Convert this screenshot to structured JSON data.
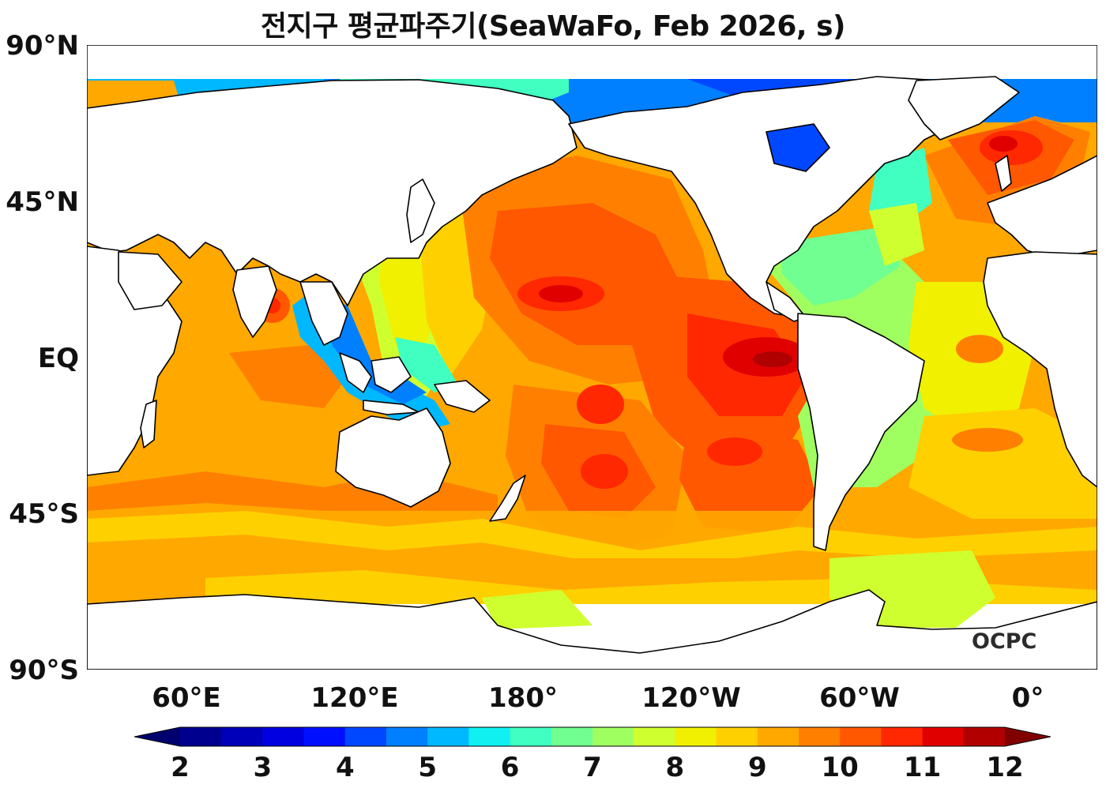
{
  "title": "전지구 평균파주기(SeaWaFo, Feb 2026, s)",
  "logo": "OCPC",
  "lat_labels": [
    "90°N",
    "45°N",
    "EQ",
    "45°S",
    "90°S"
  ],
  "lon_labels": [
    "60°E",
    "120°E",
    "180°",
    "120°W",
    "60°W",
    "0°"
  ],
  "colorbar": {
    "ticks": [
      "2",
      "3",
      "4",
      "5",
      "6",
      "7",
      "8",
      "9",
      "10",
      "11",
      "12"
    ],
    "colors": [
      "#00008f",
      "#0000b8",
      "#0000e0",
      "#0010ff",
      "#0048ff",
      "#0080ff",
      "#00b8ff",
      "#10f0f0",
      "#40ffc0",
      "#70ff90",
      "#a0ff60",
      "#d0ff30",
      "#f0f000",
      "#ffd000",
      "#ffa800",
      "#ff8000",
      "#ff5800",
      "#ff2800",
      "#e00000",
      "#b00000"
    ],
    "under_color": "#00006f",
    "over_color": "#800000"
  },
  "chart_data": {
    "type": "heatmap",
    "title": "전지구 평균파주기(SeaWaFo, Feb 2026, s)",
    "variable": "mean wave period",
    "unit": "s",
    "x_range": [
      30,
      390
    ],
    "y_range": [
      -90,
      90
    ],
    "value_range": [
      2,
      12
    ],
    "legend": "bottom colorbar"
  }
}
